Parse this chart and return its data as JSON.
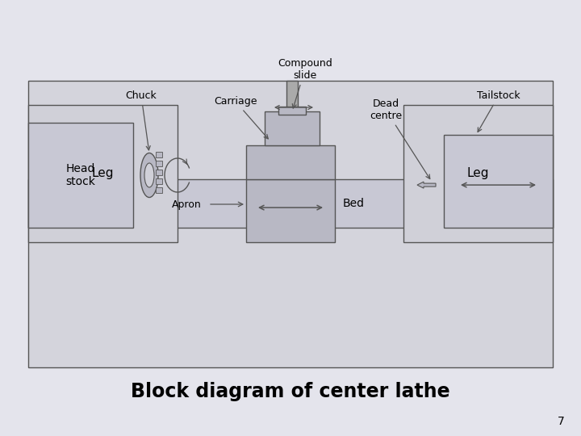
{
  "bg_outer": "#e4e4ec",
  "bg_inner": "#d4d4dc",
  "fill_medium": "#b8b8c4",
  "fill_light": "#c8c8d4",
  "fill_lighter": "#d0d0d8",
  "edge_color": "#555555",
  "title": "Block diagram of center lathe",
  "title_fontsize": 17,
  "page_number": "7",
  "labels": {
    "headstock": "Head\nstock",
    "chuck": "Chuck",
    "carriage": "Carriage",
    "compound_slide": "Compound\nslide",
    "dead_centre": "Dead\ncentre",
    "tailstock": "Tailstock",
    "apron": "Apron",
    "bed": "Bed",
    "leg": "Leg"
  }
}
